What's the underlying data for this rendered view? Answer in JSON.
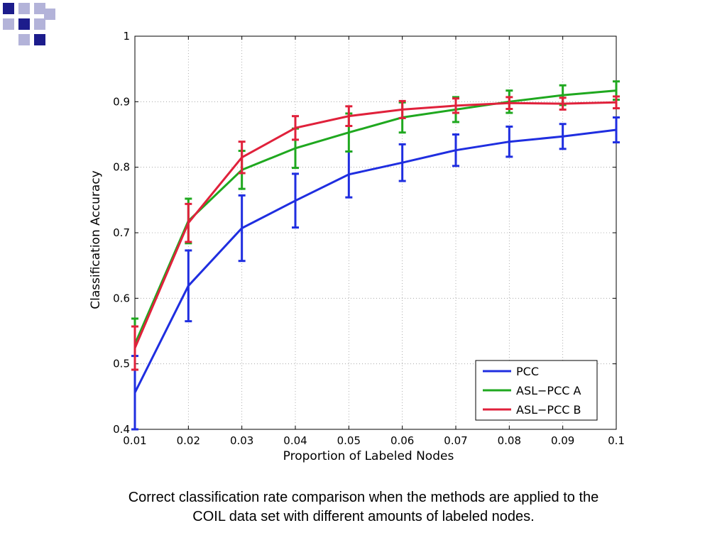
{
  "slide": {
    "caption_line1": "Correct classification rate comparison when the methods are applied to the",
    "caption_line2": "COIL data set with different amounts of labeled nodes.",
    "logo_color": "#1c1c8c",
    "logo_color_light": "#b3b3d9"
  },
  "chart_data": {
    "type": "line",
    "title": "",
    "xlabel": "Proportion of Labeled Nodes",
    "ylabel": "Classification Accuracy",
    "xlim": [
      0.01,
      0.1
    ],
    "ylim": [
      0.4,
      1.0
    ],
    "x": [
      0.01,
      0.02,
      0.03,
      0.04,
      0.05,
      0.06,
      0.07,
      0.08,
      0.09,
      0.1
    ],
    "x_tick_labels": [
      "0.01",
      "0.02",
      "0.03",
      "0.04",
      "0.05",
      "0.06",
      "0.07",
      "0.08",
      "0.09",
      "0.1"
    ],
    "y_ticks": [
      0.4,
      0.5,
      0.6,
      0.7,
      0.8,
      0.9,
      1.0
    ],
    "y_tick_labels": [
      "0.4",
      "0.5",
      "0.6",
      "0.7",
      "0.8",
      "0.9",
      "1"
    ],
    "grid": true,
    "legend_position": "bottom-right",
    "series": [
      {
        "name": "PCC",
        "color": "#1f2ee0",
        "values": [
          0.456,
          0.619,
          0.707,
          0.749,
          0.789,
          0.807,
          0.826,
          0.839,
          0.847,
          0.857
        ],
        "errors": [
          0.056,
          0.054,
          0.05,
          0.041,
          0.035,
          0.028,
          0.024,
          0.023,
          0.019,
          0.019
        ]
      },
      {
        "name": "ASL−PCC A",
        "color": "#1fa81f",
        "values": [
          0.53,
          0.718,
          0.796,
          0.829,
          0.853,
          0.876,
          0.888,
          0.9,
          0.91,
          0.917
        ],
        "errors": [
          0.039,
          0.034,
          0.029,
          0.03,
          0.029,
          0.023,
          0.019,
          0.017,
          0.015,
          0.014
        ]
      },
      {
        "name": "ASL−PCC B",
        "color": "#e0213b",
        "values": [
          0.524,
          0.715,
          0.815,
          0.86,
          0.878,
          0.888,
          0.894,
          0.898,
          0.897,
          0.899
        ],
        "errors": [
          0.033,
          0.029,
          0.024,
          0.018,
          0.015,
          0.013,
          0.011,
          0.009,
          0.009,
          0.009
        ]
      }
    ]
  }
}
